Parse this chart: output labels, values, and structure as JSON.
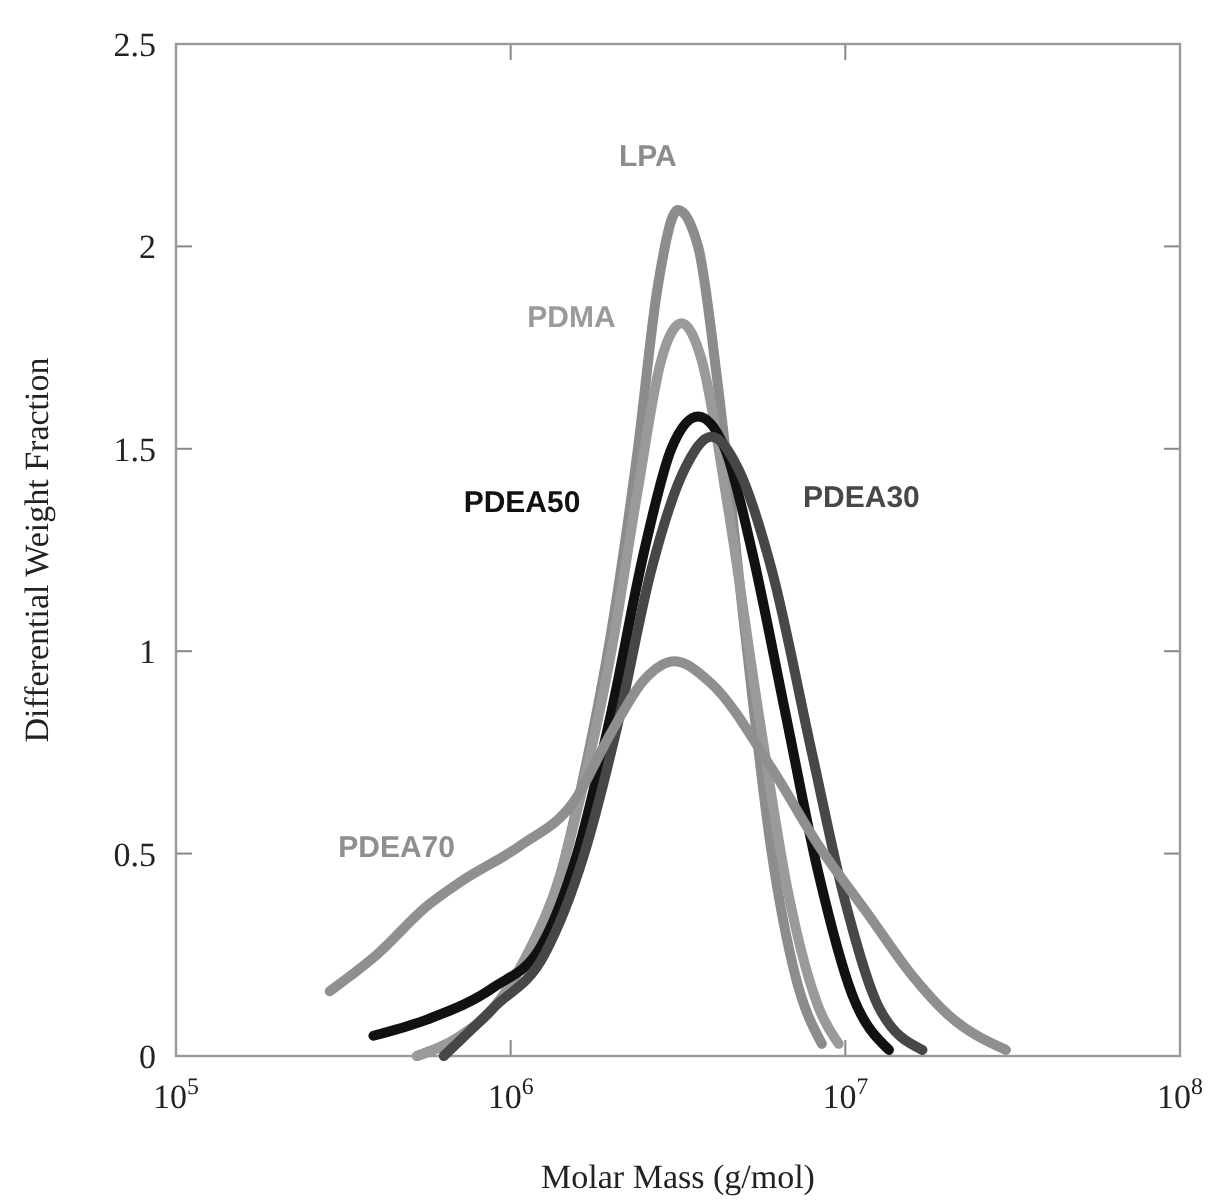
{
  "chart_data": {
    "type": "line",
    "xlabel": "Molar Mass (g/mol)",
    "ylabel": "Differential Weight Fraction",
    "log": "x",
    "xlim": [
      100000,
      100000000
    ],
    "xticks": [
      {
        "value": 100000,
        "label": "10$^{5}$"
      },
      {
        "value": 1000000,
        "label": "10$^{6}$"
      },
      {
        "value": 10000000,
        "label": "10$^{7}$"
      },
      {
        "value": 100000000,
        "label": "10$^{8}$"
      }
    ],
    "ylim": [
      0,
      2.5
    ],
    "yticks": [
      0,
      0.5,
      1,
      1.5,
      2,
      2.5
    ],
    "marker": "none",
    "line_style": "solid",
    "series": [
      {
        "name": "LPA",
        "color": "#8c8c8c",
        "x": [
          525000,
          708000,
          891000,
          1120000,
          1410000,
          1660000,
          2000000,
          2400000,
          2750000,
          3160000,
          3630000,
          4170000,
          5010000,
          6030000,
          7080000,
          8510000
        ],
        "values": [
          0,
          0.05,
          0.12,
          0.25,
          0.45,
          0.7,
          1.05,
          1.5,
          1.9,
          2.09,
          2.0,
          1.65,
          1.05,
          0.5,
          0.2,
          0.03
        ]
      },
      {
        "name": "PDMA",
        "color": "#9a9a9a",
        "x": [
          525000,
          708000,
          891000,
          1120000,
          1410000,
          1660000,
          2000000,
          2400000,
          2820000,
          3240000,
          3720000,
          4470000,
          5500000,
          6760000,
          8320000,
          9550000
        ],
        "values": [
          0,
          0.05,
          0.12,
          0.25,
          0.45,
          0.68,
          1.0,
          1.4,
          1.72,
          1.81,
          1.72,
          1.35,
          0.85,
          0.4,
          0.12,
          0.03
        ]
      },
      {
        "name": "PDEA50",
        "color": "#111111",
        "x": [
          389000,
          562000,
          891000,
          1230000,
          1580000,
          2000000,
          2510000,
          3020000,
          3630000,
          4370000,
          5250000,
          6610000,
          8320000,
          10500000,
          13500000
        ],
        "values": [
          0.05,
          0.09,
          0.17,
          0.27,
          0.5,
          0.85,
          1.25,
          1.5,
          1.58,
          1.5,
          1.25,
          0.85,
          0.45,
          0.15,
          0.015
        ]
      },
      {
        "name": "PDEA30",
        "color": "#474747",
        "x": [
          631000,
          891000,
          1260000,
          1660000,
          2090000,
          2630000,
          3310000,
          3980000,
          4790000,
          6030000,
          7940000,
          10000000,
          12600000,
          17000000
        ],
        "values": [
          0,
          0.12,
          0.25,
          0.5,
          0.82,
          1.2,
          1.45,
          1.53,
          1.45,
          1.2,
          0.75,
          0.38,
          0.12,
          0.015
        ]
      },
      {
        "name": "PDEA70",
        "color": "#8f8f8f",
        "x": [
          288000,
          398000,
          562000,
          708000,
          1070000,
          1550000,
          2000000,
          2510000,
          3090000,
          3980000,
          6030000,
          8320000,
          11700000,
          15800000,
          20400000,
          30200000
        ],
        "values": [
          0.16,
          0.25,
          0.37,
          0.43,
          0.52,
          0.63,
          0.8,
          0.93,
          0.975,
          0.92,
          0.71,
          0.52,
          0.35,
          0.2,
          0.1,
          0.015
        ]
      }
    ]
  }
}
